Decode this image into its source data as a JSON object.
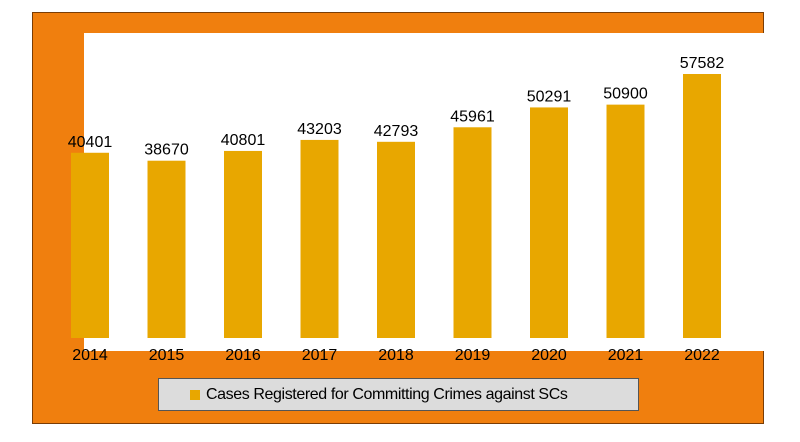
{
  "chart_data": {
    "type": "bar",
    "categories": [
      "2014",
      "2015",
      "2016",
      "2017",
      "2018",
      "2019",
      "2020",
      "2021",
      "2022"
    ],
    "series": [
      {
        "name": "Cases Registered for Committing Crimes against SCs",
        "values": [
          40401,
          38670,
          40801,
          43203,
          42793,
          45961,
          50291,
          50900,
          57582
        ],
        "color": "#e8a700"
      }
    ],
    "title": "",
    "xlabel": "",
    "ylabel": "",
    "ylim": [
      0,
      60000
    ],
    "grid": false,
    "legend": "bottom",
    "data_labels": true,
    "background_color": "#f07f0e",
    "plot_background": "#ffffff"
  }
}
